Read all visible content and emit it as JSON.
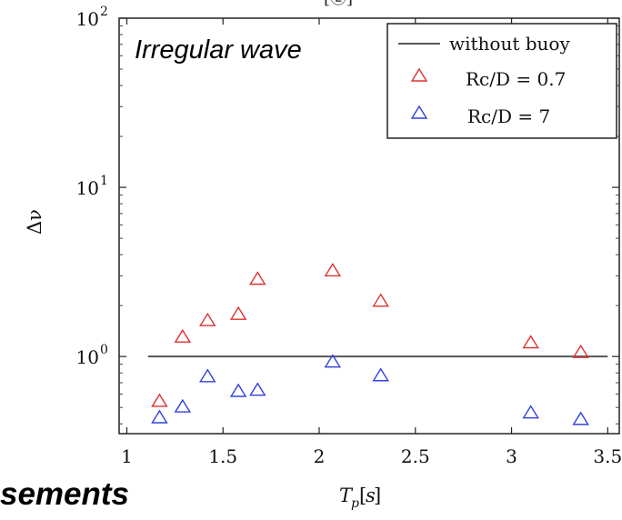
{
  "chart_data": {
    "type": "scatter",
    "x": [],
    "xlabel": "T_p[s]",
    "ylabel": "Δν",
    "xlim": [
      0.96,
      3.56
    ],
    "ylim": [
      0.35,
      100
    ],
    "yscale": "log",
    "grid": false,
    "legend_position": "top-right",
    "top_label": "[Ⓔ]",
    "x_ticks": [
      "1",
      "1.5",
      "2",
      "2.5",
      "3",
      "3.5"
    ],
    "y_ticks": [
      {
        "value": 1,
        "base": "10",
        "exp": "0"
      },
      {
        "value": 10,
        "base": "10",
        "exp": "1"
      },
      {
        "value": 100,
        "base": "10",
        "exp": "2"
      }
    ],
    "annotations": [
      {
        "text": "Irregular wave",
        "placement": "top-left"
      },
      {
        "text": "sements",
        "placement": "bottom-left-outside"
      }
    ],
    "series": [
      {
        "name": "without buoy",
        "kind": "line",
        "color": "#555555",
        "points": [
          {
            "x": 1.11,
            "y": 1.0
          },
          {
            "x": 3.5,
            "y": 1.0
          }
        ]
      },
      {
        "name": "Rc/D = 0.7",
        "kind": "marker",
        "marker": "triangle-open",
        "color": "#e03030",
        "points": [
          {
            "x": 1.17,
            "y": 0.55
          },
          {
            "x": 1.29,
            "y": 1.32
          },
          {
            "x": 1.42,
            "y": 1.65
          },
          {
            "x": 1.58,
            "y": 1.8
          },
          {
            "x": 1.68,
            "y": 2.9
          },
          {
            "x": 2.07,
            "y": 3.25
          },
          {
            "x": 2.32,
            "y": 2.15
          },
          {
            "x": 3.1,
            "y": 1.22
          },
          {
            "x": 3.36,
            "y": 1.07
          }
        ]
      },
      {
        "name": "Rc/D = 7",
        "kind": "marker",
        "marker": "triangle-open",
        "color": "#3040e0",
        "points": [
          {
            "x": 1.17,
            "y": 0.44
          },
          {
            "x": 1.29,
            "y": 0.51
          },
          {
            "x": 1.42,
            "y": 0.77
          },
          {
            "x": 1.58,
            "y": 0.63
          },
          {
            "x": 1.68,
            "y": 0.64
          },
          {
            "x": 2.07,
            "y": 0.94
          },
          {
            "x": 2.32,
            "y": 0.78
          },
          {
            "x": 3.1,
            "y": 0.47
          },
          {
            "x": 3.36,
            "y": 0.43
          }
        ]
      }
    ]
  }
}
